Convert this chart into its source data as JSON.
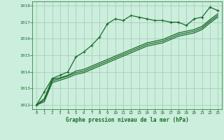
{
  "title": "Graphe pression niveau de la mer (hPa)",
  "background_color": "#cceedd",
  "grid_color": "#aaccbb",
  "line_color": "#1a6b2a",
  "xlim": [
    -0.5,
    23.5
  ],
  "ylim": [
    1011.75,
    1018.25
  ],
  "yticks": [
    1012,
    1013,
    1014,
    1015,
    1016,
    1017,
    1018
  ],
  "xticks": [
    0,
    1,
    2,
    3,
    4,
    5,
    6,
    7,
    8,
    9,
    10,
    11,
    12,
    13,
    14,
    15,
    16,
    17,
    18,
    19,
    20,
    21,
    22,
    23
  ],
  "series1_x": [
    0,
    1,
    2,
    3,
    4,
    5,
    6,
    7,
    8,
    9,
    10,
    11,
    12,
    13,
    14,
    15,
    16,
    17,
    18,
    19,
    20,
    21,
    22,
    23
  ],
  "series1_y": [
    1012.0,
    1012.8,
    1013.6,
    1013.8,
    1014.0,
    1014.9,
    1015.2,
    1015.6,
    1016.1,
    1016.9,
    1017.2,
    1017.1,
    1017.4,
    1017.3,
    1017.2,
    1017.1,
    1017.1,
    1017.0,
    1017.0,
    1016.8,
    1017.2,
    1017.3,
    1017.9,
    1017.7
  ],
  "series2_y": [
    1012.0,
    1012.4,
    1013.55,
    1013.65,
    1013.8,
    1014.05,
    1014.15,
    1014.35,
    1014.55,
    1014.75,
    1014.95,
    1015.15,
    1015.35,
    1015.55,
    1015.75,
    1015.85,
    1015.95,
    1016.15,
    1016.35,
    1016.45,
    1016.55,
    1016.75,
    1017.15,
    1017.5
  ],
  "series3_y": [
    1012.0,
    1012.3,
    1013.45,
    1013.6,
    1013.75,
    1013.95,
    1014.05,
    1014.25,
    1014.45,
    1014.65,
    1014.85,
    1015.05,
    1015.25,
    1015.45,
    1015.65,
    1015.75,
    1015.85,
    1016.05,
    1016.25,
    1016.35,
    1016.45,
    1016.65,
    1017.05,
    1017.4
  ],
  "series4_y": [
    1012.0,
    1012.2,
    1013.35,
    1013.5,
    1013.65,
    1013.85,
    1013.95,
    1014.15,
    1014.35,
    1014.55,
    1014.75,
    1014.95,
    1015.15,
    1015.35,
    1015.55,
    1015.65,
    1015.75,
    1015.95,
    1016.15,
    1016.25,
    1016.35,
    1016.55,
    1016.95,
    1017.3
  ]
}
